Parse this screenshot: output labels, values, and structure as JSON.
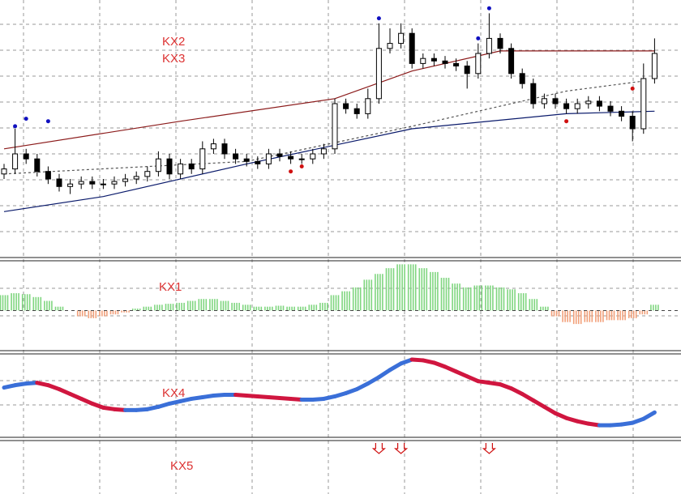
{
  "chart_data": [
    {
      "type": "candlestick",
      "annotations": [
        "KX2",
        "KX3"
      ],
      "ylim": [
        0,
        100
      ],
      "open": [
        32,
        34,
        40,
        38,
        33,
        30,
        27,
        28,
        29,
        28,
        28,
        29,
        30,
        31,
        33,
        38,
        32,
        36,
        34,
        42,
        44,
        40,
        38,
        37,
        36,
        40,
        39,
        38,
        38,
        40,
        42,
        60,
        58,
        56,
        62,
        82,
        84,
        88,
        76,
        78,
        77,
        76,
        75,
        72,
        80,
        86,
        82,
        72,
        68,
        60,
        62,
        60,
        58,
        60,
        61,
        59,
        57,
        55,
        50,
        70
      ],
      "high": [
        36,
        50,
        42,
        40,
        35,
        32,
        30,
        31,
        31,
        30,
        31,
        32,
        33,
        35,
        41,
        40,
        38,
        38,
        45,
        46,
        46,
        42,
        40,
        39,
        42,
        42,
        41,
        40,
        42,
        44,
        62,
        62,
        60,
        66,
        92,
        90,
        92,
        90,
        80,
        80,
        79,
        78,
        77,
        84,
        96,
        88,
        84,
        74,
        70,
        64,
        64,
        62,
        62,
        63,
        63,
        61,
        59,
        57,
        76,
        86
      ],
      "low": [
        30,
        32,
        36,
        31,
        28,
        25,
        24,
        26,
        26,
        26,
        26,
        27,
        28,
        29,
        31,
        30,
        30,
        32,
        32,
        40,
        38,
        36,
        35,
        34,
        34,
        37,
        36,
        36,
        36,
        38,
        40,
        56,
        54,
        54,
        60,
        80,
        82,
        74,
        74,
        75,
        74,
        73,
        66,
        70,
        78,
        80,
        70,
        66,
        58,
        58,
        58,
        56,
        56,
        58,
        57,
        55,
        53,
        45,
        48,
        68
      ],
      "close": [
        34,
        40,
        38,
        33,
        30,
        27,
        28,
        29,
        28,
        28,
        29,
        30,
        31,
        33,
        38,
        32,
        36,
        34,
        42,
        44,
        40,
        38,
        37,
        36,
        40,
        39,
        38,
        38,
        40,
        42,
        60,
        58,
        56,
        62,
        82,
        84,
        88,
        76,
        78,
        77,
        76,
        75,
        72,
        80,
        86,
        82,
        72,
        68,
        60,
        62,
        60,
        58,
        60,
        61,
        59,
        57,
        55,
        50,
        70,
        80
      ],
      "lines": [
        {
          "color": "#8b1a1a",
          "x": [
            0,
            16,
            30,
            37,
            45,
            59
          ],
          "values": [
            42,
            53,
            62,
            73,
            81,
            81
          ]
        },
        {
          "color": "#555555",
          "x": [
            0,
            22,
            37,
            51,
            58
          ],
          "values": [
            32,
            37,
            51,
            65,
            69
          ]
        },
        {
          "color": "#0a1a6b",
          "x": [
            0,
            9,
            22,
            37,
            51,
            59
          ],
          "values": [
            17,
            23,
            36,
            50,
            56,
            57
          ]
        }
      ],
      "dots_up": {
        "color": "#1010c0",
        "x": [
          1,
          2,
          4,
          34,
          43,
          44
        ],
        "values": [
          51,
          54,
          53,
          94,
          86,
          98
        ]
      },
      "dots_down": {
        "color": "#d01010",
        "x": [
          26,
          27,
          51,
          57
        ],
        "values": [
          33,
          35,
          53,
          66
        ]
      }
    },
    {
      "type": "bar",
      "annotation": "KX1",
      "ylim": [
        -2,
        2.5
      ],
      "positive_color": "#7fd67f",
      "negative_color": "#f2a07a",
      "values": [
        0.8,
        0.9,
        0.85,
        0.7,
        0.5,
        0.2,
        0.0,
        -0.3,
        -0.4,
        -0.3,
        -0.2,
        -0.1,
        0.1,
        0.2,
        0.3,
        0.35,
        0.4,
        0.5,
        0.6,
        0.6,
        0.5,
        0.4,
        0.3,
        0.2,
        0.2,
        0.25,
        0.2,
        0.2,
        0.3,
        0.4,
        0.8,
        1.0,
        1.2,
        1.6,
        1.9,
        2.2,
        2.4,
        2.4,
        2.2,
        2.0,
        1.7,
        1.4,
        1.2,
        1.3,
        1.3,
        1.2,
        1.1,
        0.9,
        0.6,
        0.2,
        -0.3,
        -0.6,
        -0.7,
        -0.6,
        -0.6,
        -0.5,
        -0.5,
        -0.4,
        -0.2,
        0.3
      ]
    },
    {
      "type": "line",
      "annotation": "KX4",
      "ylim": [
        0,
        10
      ],
      "rising_color": "#3a6fd8",
      "falling_color": "#d0163f",
      "values": [
        6.0,
        6.3,
        6.5,
        6.6,
        6.3,
        5.8,
        5.2,
        4.6,
        4.0,
        3.5,
        3.3,
        3.2,
        3.2,
        3.3,
        3.6,
        4.0,
        4.3,
        4.6,
        4.8,
        5.0,
        5.1,
        5.1,
        5.0,
        4.9,
        4.8,
        4.7,
        4.6,
        4.5,
        4.5,
        4.6,
        4.9,
        5.3,
        5.8,
        6.5,
        7.3,
        8.2,
        9.0,
        9.5,
        9.4,
        9.1,
        8.6,
        8.0,
        7.4,
        6.8,
        6.6,
        6.4,
        5.9,
        5.2,
        4.4,
        3.6,
        2.8,
        2.2,
        1.8,
        1.5,
        1.3,
        1.3,
        1.4,
        1.6,
        2.1,
        2.9
      ]
    },
    {
      "type": "signal",
      "annotation": "KX5",
      "color": "#d01010",
      "x": [
        34,
        36,
        44
      ]
    }
  ]
}
